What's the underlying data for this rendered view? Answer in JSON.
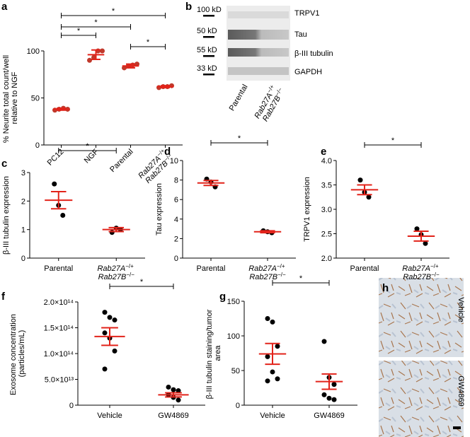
{
  "chart_data": [
    {
      "type": "dot",
      "panel": "a",
      "ylabel": "% Neurite total count/well relative to NGF",
      "categories": [
        "PC12",
        "NGF",
        "Parental",
        "Rab27A−/+ Rab27B−/−"
      ],
      "values": [
        [
          37,
          38,
          39,
          38
        ],
        [
          90,
          93,
          100,
          100
        ],
        [
          82,
          84,
          85,
          86
        ],
        [
          61,
          62,
          62,
          63
        ]
      ],
      "mean": [
        38,
        96,
        84,
        62
      ],
      "error": [
        1,
        5,
        2,
        1
      ],
      "ylim": [
        0,
        100
      ],
      "yticks": [
        0,
        50,
        100
      ],
      "point_color": "#c0392b",
      "summary_color": "#e2231a",
      "significance": [
        {
          "pair": [
            0,
            3
          ],
          "label": "*"
        },
        {
          "pair": [
            0,
            2
          ],
          "label": "*"
        },
        {
          "pair": [
            0,
            1
          ],
          "label": "*"
        },
        {
          "pair": [
            2,
            3
          ],
          "label": "*"
        }
      ]
    },
    {
      "type": "dot",
      "panel": "c",
      "ylabel": "β-III tubulin expression",
      "categories": [
        "Parental",
        "Rab27A−/+ Rab27B−/−"
      ],
      "values": [
        [
          2.6,
          1.85,
          1.5
        ],
        [
          0.9,
          1.05,
          1.0
        ]
      ],
      "mean": [
        2.03,
        1.0
      ],
      "error": [
        0.3,
        0.07
      ],
      "ylim": [
        0,
        3
      ],
      "yticks": [
        0,
        1,
        2,
        3
      ],
      "point_color": "#000000",
      "summary_color": "#e2231a",
      "significance": [
        {
          "pair": [
            0,
            1
          ],
          "label": "*"
        }
      ]
    },
    {
      "type": "dot",
      "panel": "d",
      "ylabel": "Tau expression",
      "categories": [
        "Parental",
        "Rab27A−/+ Rab27B−/−"
      ],
      "values": [
        [
          8.1,
          7.8,
          7.3
        ],
        [
          2.8,
          2.7,
          2.6
        ]
      ],
      "mean": [
        7.7,
        2.7
      ],
      "error": [
        0.25,
        0.1
      ],
      "ylim": [
        0,
        10
      ],
      "yticks": [
        0,
        2,
        4,
        6,
        8,
        10
      ],
      "point_color": "#000000",
      "summary_color": "#e2231a",
      "significance": [
        {
          "pair": [
            0,
            1
          ],
          "label": "*"
        }
      ]
    },
    {
      "type": "dot",
      "panel": "e",
      "ylabel": "TRPV1 expression",
      "categories": [
        "Parental",
        "Rab27A−/+ Rab27B−/−"
      ],
      "values": [
        [
          3.6,
          3.35,
          3.25
        ],
        [
          2.6,
          2.48,
          2.3
        ]
      ],
      "mean": [
        3.4,
        2.45
      ],
      "error": [
        0.1,
        0.1
      ],
      "ylim": [
        2,
        4
      ],
      "yticks": [
        {
          "value": 2,
          "label": "2.0"
        },
        2.5,
        {
          "value": 3,
          "label": "3.0"
        },
        3.5,
        {
          "value": 4,
          "label": "4.0"
        }
      ],
      "point_color": "#000000",
      "summary_color": "#e2231a",
      "significance": [
        {
          "pair": [
            0,
            1
          ],
          "label": "*"
        }
      ]
    },
    {
      "type": "dot",
      "panel": "f",
      "ylabel": "Exosome concentration (particles/mL)",
      "categories": [
        "Vehicle",
        "GW4869"
      ],
      "values": [
        [
          180000000000000.0,
          170000000000000.0,
          165000000000000.0,
          140000000000000.0,
          130000000000000.0,
          105000000000000.0,
          70000000000000.0
        ],
        [
          35000000000000.0,
          30000000000000.0,
          28000000000000.0,
          20000000000000.0,
          15000000000000.0,
          10000000000000.0
        ]
      ],
      "mean": [
        133000000000000.0,
        20000000000000.0
      ],
      "error": [
        17000000000000.0,
        4000000000000.0
      ],
      "ylim": [
        0,
        200000000000000.0
      ],
      "yticks": [
        0,
        {
          "value": 50000000000000.0,
          "label": "5.0×10¹³"
        },
        {
          "value": 100000000000000.0,
          "label": "1.0×10¹⁴"
        },
        {
          "value": 150000000000000.0,
          "label": "1.5×10¹⁴"
        },
        {
          "value": 200000000000000.0,
          "label": "2.0×10¹⁴"
        }
      ],
      "point_color": "#000000",
      "summary_color": "#e2231a",
      "significance": [
        {
          "pair": [
            0,
            1
          ],
          "label": "*"
        }
      ]
    },
    {
      "type": "dot",
      "panel": "g",
      "ylabel": "β-III tubulin staining/tumor area",
      "categories": [
        "Vehicle",
        "GW4869"
      ],
      "values": [
        [
          125,
          120,
          85,
          70,
          48,
          38,
          35
        ],
        [
          92,
          40,
          30,
          15,
          10,
          8
        ]
      ],
      "mean": [
        74,
        34
      ],
      "error": [
        15,
        11
      ],
      "ylim": [
        0,
        150
      ],
      "yticks": [
        0,
        50,
        100,
        150
      ],
      "point_color": "#000000",
      "summary_color": "#e2231a",
      "significance": [
        {
          "pair": [
            0,
            1
          ],
          "label": "*"
        }
      ]
    }
  ],
  "blot": {
    "panel": "b",
    "bands": [
      {
        "size": "100 kD",
        "name": "TRPV1"
      },
      {
        "size": "50 kD",
        "name": "Tau"
      },
      {
        "size": "55 kD",
        "name": "β-III tubulin"
      },
      {
        "size": "33 kD",
        "name": "GAPDH"
      }
    ],
    "lanes": [
      "Parental",
      "Rab27A−/+ Rab27B−/−"
    ]
  },
  "histology": {
    "panel": "h",
    "rows": [
      "Vehicle",
      "GW4869"
    ]
  }
}
